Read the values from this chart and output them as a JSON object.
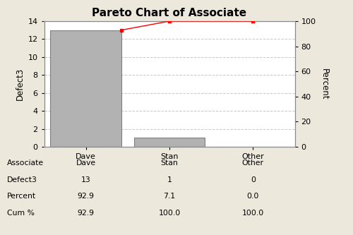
{
  "title": "Pareto Chart of Associate",
  "categories": [
    "Dave",
    "Stan",
    "Other"
  ],
  "values": [
    13,
    1,
    0
  ],
  "cum_pct": [
    92.9,
    100.0,
    100.0
  ],
  "bar_color": "#b2b2b2",
  "bar_edge_color": "#808080",
  "line_color": "#ff0000",
  "marker_color": "#ff0000",
  "background_color": "#ede8dc",
  "plot_bg_color": "#ffffff",
  "ylabel_left": "Defect3",
  "ylabel_right": "Percent",
  "ylim_left": [
    0,
    14
  ],
  "ylim_right": [
    0,
    100
  ],
  "yticks_left": [
    0,
    2,
    4,
    6,
    8,
    10,
    12,
    14
  ],
  "yticks_right": [
    0,
    20,
    40,
    60,
    80,
    100
  ],
  "grid_color": "#c8c8c8",
  "title_fontsize": 11,
  "axis_label_fontsize": 8.5,
  "tick_fontsize": 8,
  "table_fontsize": 7.8,
  "table_row_labels": [
    "Associate",
    "Defect3",
    "Percent",
    "Cum %"
  ],
  "table_col_labels": [
    "Dave",
    "Stan",
    "Other"
  ],
  "table_data": [
    [
      "Dave",
      "Stan",
      "Other"
    ],
    [
      "13",
      "1",
      "0"
    ],
    [
      "92.9",
      "7.1",
      "0.0"
    ],
    [
      "92.9",
      "100.0",
      "100.0"
    ]
  ]
}
